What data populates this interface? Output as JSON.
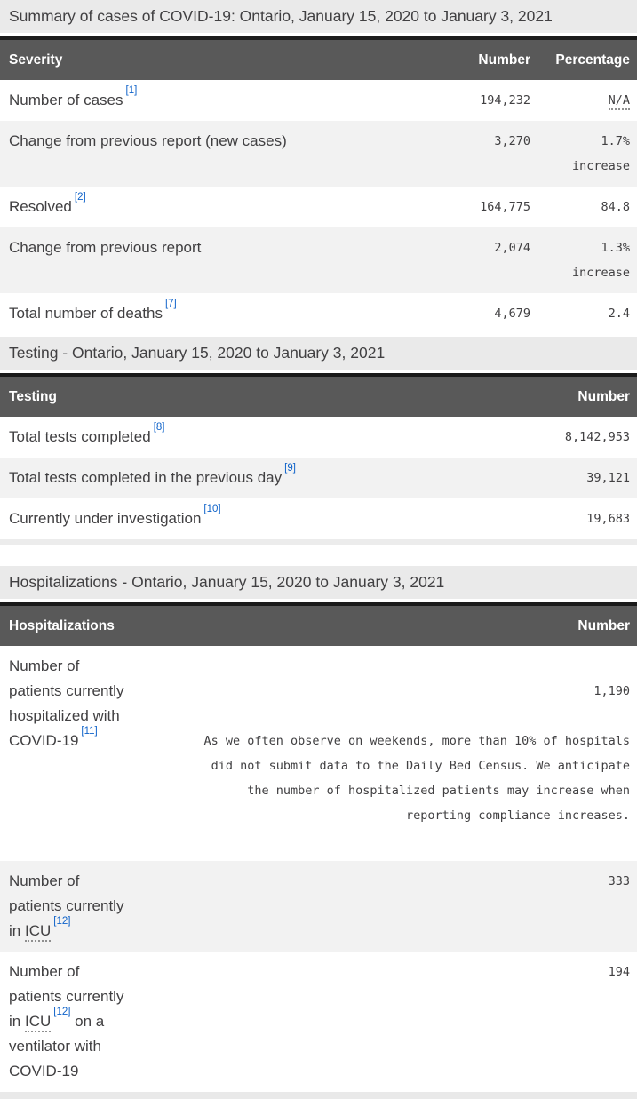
{
  "colors": {
    "caption_bg": "#eaeaea",
    "header_bg": "#595959",
    "header_top_border": "#1a1a1a",
    "stripe_bg": "#f2f2f2",
    "text": "#414042",
    "footnote_link": "#0e62c9"
  },
  "summary_table": {
    "caption": "Summary of cases of COVID-19: Ontario, January 15, 2020 to January 3, 2021",
    "headers": {
      "col1": "Severity",
      "col2": "Number",
      "col3": "Percentage"
    },
    "rows": [
      {
        "label": "Number of cases",
        "ref": "[1]",
        "number": "194,232",
        "percentage": "N/A"
      },
      {
        "label": "Change from previous report (new cases)",
        "number": "3,270",
        "percentage": "1.7%\nincrease"
      },
      {
        "label": "Resolved",
        "ref": "[2]",
        "number": "164,775",
        "percentage": "84.8"
      },
      {
        "label": "Change from previous report",
        "number": "2,074",
        "percentage": "1.3%\nincrease"
      },
      {
        "label": "Total number of deaths",
        "ref": "[7]",
        "number": "4,679",
        "percentage": "2.4"
      }
    ]
  },
  "testing_table": {
    "caption": "Testing - Ontario, January 15, 2020 to January 3, 2021",
    "headers": {
      "col1": "Testing",
      "col2": "Number"
    },
    "rows": [
      {
        "label": "Total tests completed",
        "ref": "[8]",
        "number": "8,142,953"
      },
      {
        "label": "Total tests completed in the previous day",
        "ref": "[9]",
        "number": "39,121"
      },
      {
        "label": "Currently under investigation",
        "ref": "[10]",
        "number": "19,683"
      }
    ]
  },
  "hospitalizations_table": {
    "caption": "Hospitalizations - Ontario, January 15, 2020 to January 3, 2021",
    "headers": {
      "col1": "Hospitalizations",
      "col2": "Number"
    },
    "rows": [
      {
        "label": "Number of\npatients currently\nhospitalized with\nCOVID-19",
        "ref": "[11]",
        "number": "1,190",
        "note": "As we often observe on weekends, more than 10% of hospitals\ndid not submit data to the Daily Bed Census. We anticipate\nthe number of hospitalized patients may increase when\nreporting compliance increases."
      },
      {
        "label_pre": "Number of\npatients currently\nin ",
        "abbr": "ICU",
        "ref": "[12]",
        "number": "333"
      },
      {
        "label_pre": "Number of\npatients currently\nin ",
        "abbr": "ICU",
        "ref": "[12]",
        "label_post": " on a\nventilator with\nCOVID-19",
        "number": "194"
      }
    ]
  }
}
